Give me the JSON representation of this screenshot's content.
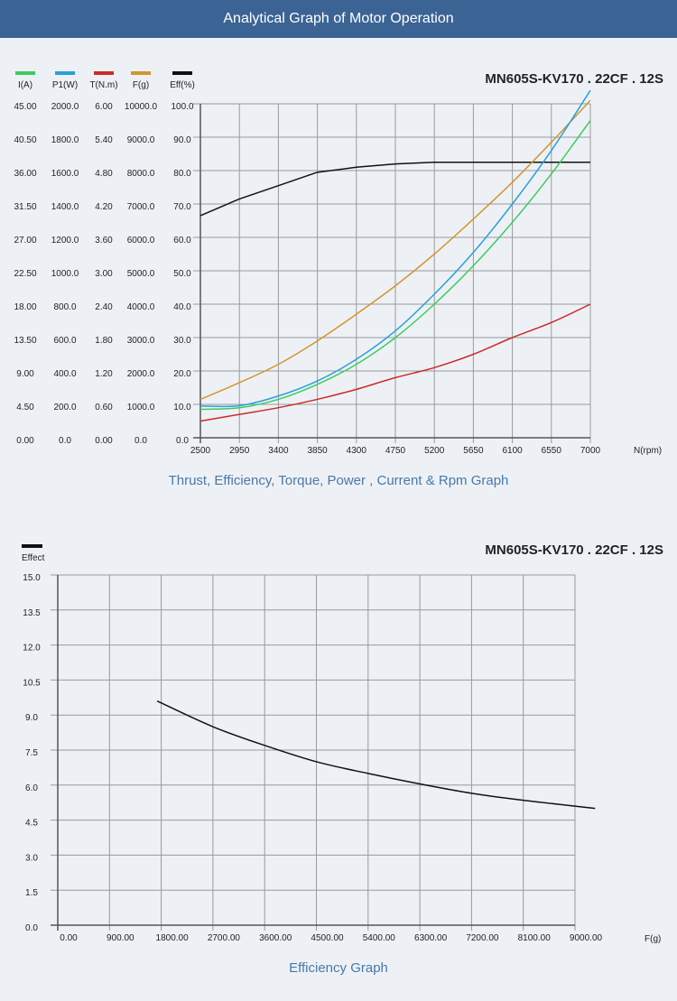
{
  "header": {
    "title": "Analytical Graph of Motor Operation"
  },
  "colors": {
    "current": "#3dcc5a",
    "power": "#2a9fd8",
    "torque": "#cc2a2a",
    "thrust": "#d4962a",
    "efficiency": "#111111"
  },
  "chart_data": [
    {
      "type": "line",
      "title": "MN605S-KV170 . 22CF . 12S",
      "caption": "Thrust, Efficiency, Torque, Power , Current & Rpm Graph",
      "xlabel": "N(rpm)",
      "xlim": [
        2500,
        7000
      ],
      "x_ticks": [
        "2500",
        "2950",
        "3400",
        "3850",
        "4300",
        "4750",
        "5200",
        "5650",
        "6100",
        "6550",
        "7000"
      ],
      "grid": true,
      "legend_placement": "top-left",
      "axes": [
        {
          "key": "current",
          "name": "I(A)",
          "max": 45,
          "ticks": [
            "0.00",
            "4.50",
            "9.00",
            "13.50",
            "18.00",
            "22.50",
            "27.00",
            "31.50",
            "36.00",
            "40.50",
            "45.00"
          ]
        },
        {
          "key": "power",
          "name": "P1(W)",
          "max": 2000,
          "ticks": [
            "0.0",
            "200.0",
            "400.0",
            "600.0",
            "800.0",
            "1000.0",
            "1200.0",
            "1400.0",
            "1600.0",
            "1800.0",
            "2000.0"
          ]
        },
        {
          "key": "torque",
          "name": "T(N.m)",
          "max": 6,
          "ticks": [
            "0.00",
            "0.60",
            "1.20",
            "1.80",
            "2.40",
            "3.00",
            "3.60",
            "4.20",
            "4.80",
            "5.40",
            "6.00"
          ]
        },
        {
          "key": "thrust",
          "name": "F(g)",
          "max": 10000,
          "ticks": [
            "0.0",
            "1000.0",
            "2000.0",
            "3000.0",
            "4000.0",
            "5000.0",
            "6000.0",
            "7000.0",
            "8000.0",
            "9000.0",
            "10000.0"
          ]
        },
        {
          "key": "efficiency",
          "name": "Eff(%)",
          "max": 100,
          "ticks": [
            "0.0",
            "10.0",
            "20.0",
            "30.0",
            "40.0",
            "50.0",
            "60.0",
            "70.0",
            "80.0",
            "90.0",
            "100.0"
          ]
        }
      ],
      "x": [
        2500,
        2950,
        3400,
        3850,
        4300,
        4750,
        5200,
        5650,
        6100,
        6550,
        7000
      ],
      "series": [
        {
          "key": "efficiency",
          "name": "Eff(%)",
          "values": [
            66.5,
            71.5,
            75.5,
            79.5,
            81,
            82,
            82.5,
            82.5,
            82.5,
            82.5,
            82.5
          ]
        },
        {
          "key": "thrust",
          "name": "F(g)",
          "values": [
            1150,
            1650,
            2200,
            2900,
            3700,
            4550,
            5500,
            6550,
            7650,
            8850,
            10100
          ]
        },
        {
          "key": "power",
          "name": "P1(W)",
          "values": [
            190,
            192,
            250,
            340,
            470,
            640,
            860,
            1110,
            1400,
            1720,
            2080
          ]
        },
        {
          "key": "current",
          "name": "I(A)",
          "values": [
            3.83,
            4.05,
            5.18,
            7.2,
            9.9,
            13.5,
            18,
            23.18,
            29.03,
            35.55,
            42.75
          ]
        },
        {
          "key": "torque",
          "name": "T(N.m)",
          "values": [
            0.3,
            0.42,
            0.54,
            0.69,
            0.87,
            1.08,
            1.26,
            1.5,
            1.8,
            2.07,
            2.4
          ]
        }
      ]
    },
    {
      "type": "line",
      "title": "MN605S-KV170 . 22CF . 12S",
      "caption": "Efficiency Graph",
      "legend": "Effect",
      "xlabel": "F(g)",
      "xlim": [
        0,
        9000
      ],
      "ylim": [
        0,
        15
      ],
      "x_ticks": [
        "0.00",
        "900.00",
        "1800.00",
        "2700.00",
        "3600.00",
        "4500.00",
        "5400.00",
        "6300.00",
        "7200.00",
        "8100.00",
        "9000.00"
      ],
      "y_ticks": [
        "0.0",
        "1.5",
        "3.0",
        "4.5",
        "6.0",
        "7.5",
        "9.0",
        "10.5",
        "12.0",
        "13.5",
        "15.0"
      ],
      "grid": true,
      "series": [
        {
          "name": "Effect",
          "x": [
            1730,
            2700,
            3600,
            4500,
            5400,
            6300,
            7200,
            8100,
            9000,
            9350
          ],
          "values": [
            9.6,
            8.5,
            7.7,
            7.0,
            6.5,
            6.05,
            5.65,
            5.35,
            5.1,
            5.0
          ]
        }
      ]
    }
  ]
}
